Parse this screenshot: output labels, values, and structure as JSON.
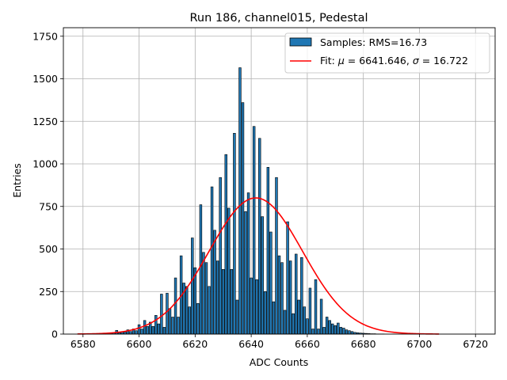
{
  "chart_data": {
    "type": "bar",
    "title": "Run 186, channel015, Pedestal",
    "xlabel": "ADC Counts",
    "ylabel": "Entries",
    "xlim": [
      6573,
      6727
    ],
    "ylim": [
      0,
      1800
    ],
    "xticks": [
      6580,
      6600,
      6620,
      6640,
      6660,
      6680,
      6700,
      6720
    ],
    "yticks": [
      0,
      250,
      500,
      750,
      1000,
      1250,
      1500,
      1750
    ],
    "grid": true,
    "legend_position": "top-right",
    "histogram": {
      "name": "Samples: RMS=16.73",
      "color": "#1f77b4",
      "edgecolor": "#000000",
      "bins": [
        {
          "x": 6578,
          "y": 0
        },
        {
          "x": 6579,
          "y": 0
        },
        {
          "x": 6580,
          "y": 0
        },
        {
          "x": 6581,
          "y": 0
        },
        {
          "x": 6582,
          "y": 0
        },
        {
          "x": 6583,
          "y": 0
        },
        {
          "x": 6584,
          "y": 1
        },
        {
          "x": 6585,
          "y": 1
        },
        {
          "x": 6586,
          "y": 2
        },
        {
          "x": 6587,
          "y": 2
        },
        {
          "x": 6588,
          "y": 3
        },
        {
          "x": 6589,
          "y": 5
        },
        {
          "x": 6590,
          "y": 5
        },
        {
          "x": 6591,
          "y": 7
        },
        {
          "x": 6592,
          "y": 22
        },
        {
          "x": 6593,
          "y": 8
        },
        {
          "x": 6594,
          "y": 14
        },
        {
          "x": 6595,
          "y": 12
        },
        {
          "x": 6596,
          "y": 25
        },
        {
          "x": 6597,
          "y": 15
        },
        {
          "x": 6598,
          "y": 30
        },
        {
          "x": 6599,
          "y": 20
        },
        {
          "x": 6600,
          "y": 55
        },
        {
          "x": 6601,
          "y": 30
        },
        {
          "x": 6602,
          "y": 80
        },
        {
          "x": 6603,
          "y": 45
        },
        {
          "x": 6604,
          "y": 70
        },
        {
          "x": 6605,
          "y": 45
        },
        {
          "x": 6606,
          "y": 110
        },
        {
          "x": 6607,
          "y": 60
        },
        {
          "x": 6608,
          "y": 235
        },
        {
          "x": 6609,
          "y": 40
        },
        {
          "x": 6610,
          "y": 240
        },
        {
          "x": 6611,
          "y": 150
        },
        {
          "x": 6612,
          "y": 100
        },
        {
          "x": 6613,
          "y": 330
        },
        {
          "x": 6614,
          "y": 100
        },
        {
          "x": 6615,
          "y": 460
        },
        {
          "x": 6616,
          "y": 300
        },
        {
          "x": 6617,
          "y": 280
        },
        {
          "x": 6618,
          "y": 160
        },
        {
          "x": 6619,
          "y": 565
        },
        {
          "x": 6620,
          "y": 390
        },
        {
          "x": 6621,
          "y": 180
        },
        {
          "x": 6622,
          "y": 760
        },
        {
          "x": 6623,
          "y": 480
        },
        {
          "x": 6624,
          "y": 420
        },
        {
          "x": 6625,
          "y": 280
        },
        {
          "x": 6626,
          "y": 865
        },
        {
          "x": 6627,
          "y": 610
        },
        {
          "x": 6628,
          "y": 430
        },
        {
          "x": 6629,
          "y": 920
        },
        {
          "x": 6630,
          "y": 380
        },
        {
          "x": 6631,
          "y": 1055
        },
        {
          "x": 6632,
          "y": 740
        },
        {
          "x": 6633,
          "y": 380
        },
        {
          "x": 6634,
          "y": 1180
        },
        {
          "x": 6635,
          "y": 200
        },
        {
          "x": 6636,
          "y": 1565
        },
        {
          "x": 6637,
          "y": 1360
        },
        {
          "x": 6638,
          "y": 720
        },
        {
          "x": 6639,
          "y": 830
        },
        {
          "x": 6640,
          "y": 330
        },
        {
          "x": 6641,
          "y": 1220
        },
        {
          "x": 6642,
          "y": 320
        },
        {
          "x": 6643,
          "y": 1150
        },
        {
          "x": 6644,
          "y": 690
        },
        {
          "x": 6645,
          "y": 250
        },
        {
          "x": 6646,
          "y": 980
        },
        {
          "x": 6647,
          "y": 600
        },
        {
          "x": 6648,
          "y": 190
        },
        {
          "x": 6649,
          "y": 920
        },
        {
          "x": 6650,
          "y": 460
        },
        {
          "x": 6651,
          "y": 420
        },
        {
          "x": 6652,
          "y": 140
        },
        {
          "x": 6653,
          "y": 660
        },
        {
          "x": 6654,
          "y": 430
        },
        {
          "x": 6655,
          "y": 120
        },
        {
          "x": 6656,
          "y": 470
        },
        {
          "x": 6657,
          "y": 200
        },
        {
          "x": 6658,
          "y": 450
        },
        {
          "x": 6659,
          "y": 160
        },
        {
          "x": 6660,
          "y": 90
        },
        {
          "x": 6661,
          "y": 270
        },
        {
          "x": 6662,
          "y": 30
        },
        {
          "x": 6663,
          "y": 320
        },
        {
          "x": 6664,
          "y": 30
        },
        {
          "x": 6665,
          "y": 205
        },
        {
          "x": 6666,
          "y": 40
        },
        {
          "x": 6667,
          "y": 100
        },
        {
          "x": 6668,
          "y": 80
        },
        {
          "x": 6669,
          "y": 60
        },
        {
          "x": 6670,
          "y": 50
        },
        {
          "x": 6671,
          "y": 65
        },
        {
          "x": 6672,
          "y": 40
        },
        {
          "x": 6673,
          "y": 35
        },
        {
          "x": 6674,
          "y": 25
        },
        {
          "x": 6675,
          "y": 20
        },
        {
          "x": 6676,
          "y": 15
        },
        {
          "x": 6677,
          "y": 10
        },
        {
          "x": 6678,
          "y": 8
        },
        {
          "x": 6679,
          "y": 6
        },
        {
          "x": 6680,
          "y": 5
        },
        {
          "x": 6681,
          "y": 4
        },
        {
          "x": 6682,
          "y": 3
        },
        {
          "x": 6683,
          "y": 2
        },
        {
          "x": 6684,
          "y": 2
        },
        {
          "x": 6685,
          "y": 1
        },
        {
          "x": 6686,
          "y": 1
        },
        {
          "x": 6687,
          "y": 1
        },
        {
          "x": 6688,
          "y": 0
        },
        {
          "x": 6689,
          "y": 0
        },
        {
          "x": 6690,
          "y": 0
        }
      ]
    },
    "fit": {
      "name": "Fit: μ = 6641.646, σ = 16.722",
      "label_prefix": "Fit: ",
      "label_mu": "μ",
      "label_mid": " = 6641.646, ",
      "label_sigma": "σ",
      "label_suffix": " = 16.722",
      "color": "#ff0000",
      "mu": 6641.646,
      "sigma": 16.722,
      "amplitude": 800,
      "x_range": [
        6578,
        6707
      ]
    }
  }
}
